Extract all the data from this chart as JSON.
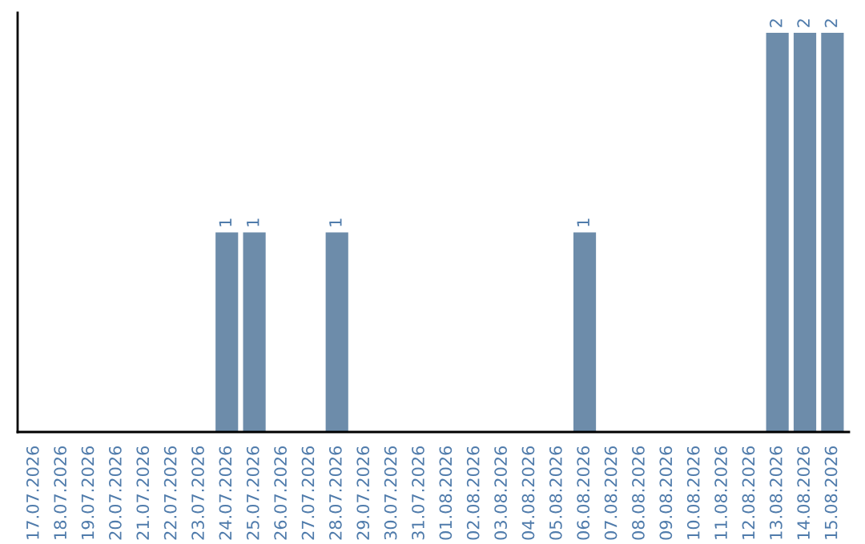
{
  "chart_data": {
    "type": "bar",
    "categories": [
      "17.07.2026",
      "18.07.2026",
      "19.07.2026",
      "20.07.2026",
      "21.07.2026",
      "22.07.2026",
      "23.07.2026",
      "24.07.2026",
      "25.07.2026",
      "26.07.2026",
      "27.07.2026",
      "28.07.2026",
      "29.07.2026",
      "30.07.2026",
      "31.07.2026",
      "01.08.2026",
      "02.08.2026",
      "03.08.2026",
      "04.08.2026",
      "05.08.2026",
      "06.08.2026",
      "07.08.2026",
      "08.08.2026",
      "09.08.2026",
      "10.08.2026",
      "11.08.2026",
      "12.08.2026",
      "13.08.2026",
      "14.08.2026",
      "15.08.2026"
    ],
    "values": [
      0,
      0,
      0,
      0,
      0,
      0,
      0,
      1,
      1,
      0,
      0,
      1,
      0,
      0,
      0,
      0,
      0,
      0,
      0,
      0,
      1,
      0,
      0,
      0,
      0,
      0,
      0,
      2,
      2,
      2
    ],
    "value_labels": [
      null,
      null,
      null,
      null,
      null,
      null,
      null,
      "1",
      "1",
      null,
      null,
      "1",
      null,
      null,
      null,
      null,
      null,
      null,
      null,
      null,
      "1",
      null,
      null,
      null,
      null,
      null,
      null,
      "2",
      "2",
      "2"
    ],
    "color": "#6d8caa",
    "grid": false,
    "legend": false,
    "tick_labels": "x"
  }
}
